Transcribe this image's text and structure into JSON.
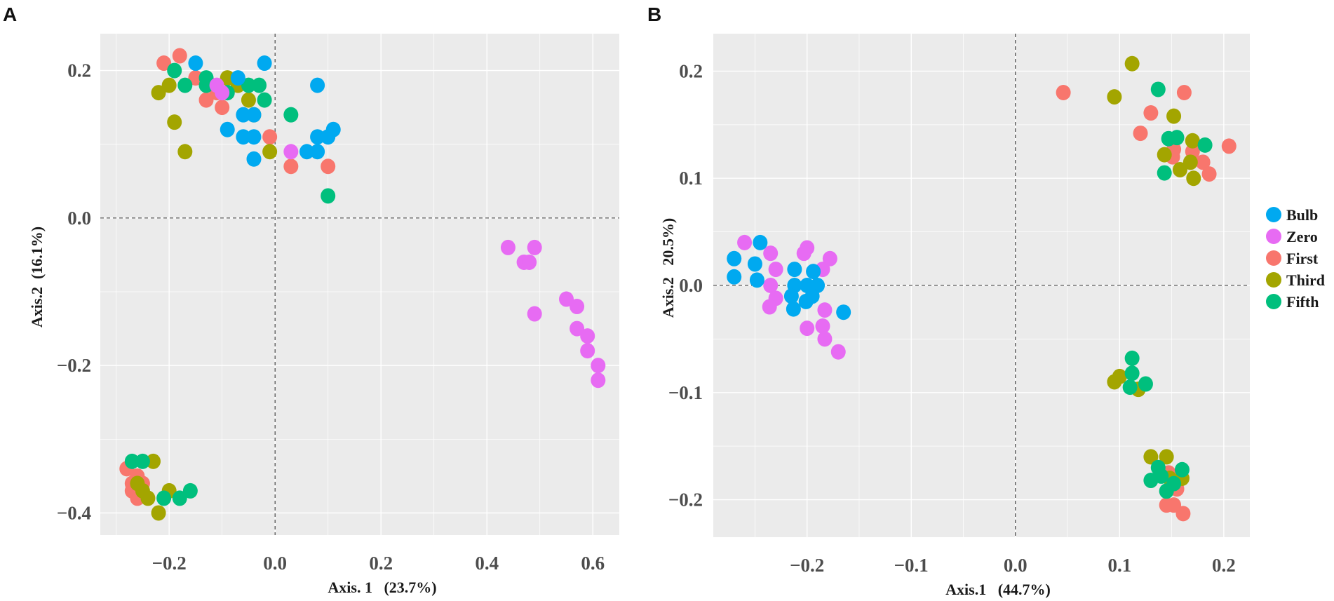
{
  "chart_data": [
    {
      "panel": "A",
      "type": "scatter",
      "xlabel": "Axis. 1   (23.7%)",
      "ylabel": "Axis.2  (16.1%)",
      "xlim": [
        -0.33,
        0.65
      ],
      "ylim": [
        -0.43,
        0.25
      ],
      "xticks": [
        -0.2,
        0.0,
        0.2,
        0.4,
        0.6
      ],
      "xtick_labels": [
        "−0.2",
        "0.0",
        "0.2",
        "0.4",
        "0.6"
      ],
      "yticks": [
        -0.4,
        -0.2,
        0.0,
        0.2
      ],
      "ytick_labels": [
        "−0.4",
        "−0.2",
        "0.0",
        "0.2"
      ],
      "grid": true,
      "reference_lines": {
        "x": 0.0,
        "y": 0.0
      },
      "series": [
        {
          "name": "First",
          "points": [
            [
              -0.21,
              0.21
            ],
            [
              -0.18,
              0.22
            ],
            [
              -0.15,
              0.19
            ],
            [
              -0.12,
              0.18
            ],
            [
              -0.13,
              0.16
            ],
            [
              -0.11,
              0.17
            ],
            [
              -0.1,
              0.15
            ],
            [
              -0.09,
              0.17
            ],
            [
              -0.01,
              0.11
            ],
            [
              0.03,
              0.07
            ],
            [
              0.1,
              0.07
            ],
            [
              -0.28,
              -0.34
            ],
            [
              -0.27,
              -0.36
            ],
            [
              -0.26,
              -0.35
            ],
            [
              -0.27,
              -0.37
            ],
            [
              -0.26,
              -0.38
            ],
            [
              -0.25,
              -0.36
            ]
          ]
        },
        {
          "name": "Third",
          "points": [
            [
              -0.22,
              0.17
            ],
            [
              -0.2,
              0.18
            ],
            [
              -0.19,
              0.13
            ],
            [
              -0.17,
              0.09
            ],
            [
              -0.09,
              0.19
            ],
            [
              -0.07,
              0.18
            ],
            [
              -0.05,
              0.16
            ],
            [
              -0.04,
              0.14
            ],
            [
              -0.01,
              0.09
            ],
            [
              -0.23,
              -0.33
            ],
            [
              -0.26,
              -0.36
            ],
            [
              -0.25,
              -0.37
            ],
            [
              -0.24,
              -0.38
            ],
            [
              -0.22,
              -0.4
            ],
            [
              -0.2,
              -0.37
            ]
          ]
        },
        {
          "name": "Fifth",
          "points": [
            [
              -0.19,
              0.2
            ],
            [
              -0.17,
              0.18
            ],
            [
              -0.13,
              0.18
            ],
            [
              -0.13,
              0.19
            ],
            [
              -0.09,
              0.17
            ],
            [
              -0.05,
              0.18
            ],
            [
              -0.03,
              0.18
            ],
            [
              -0.02,
              0.16
            ],
            [
              0.03,
              0.14
            ],
            [
              0.1,
              0.03
            ],
            [
              -0.27,
              -0.33
            ],
            [
              -0.25,
              -0.33
            ],
            [
              -0.21,
              -0.38
            ],
            [
              -0.18,
              -0.38
            ],
            [
              -0.16,
              -0.37
            ]
          ]
        },
        {
          "name": "Bulb",
          "points": [
            [
              -0.15,
              0.21
            ],
            [
              -0.02,
              0.21
            ],
            [
              -0.07,
              0.19
            ],
            [
              -0.06,
              0.14
            ],
            [
              -0.04,
              0.14
            ],
            [
              -0.09,
              0.12
            ],
            [
              -0.06,
              0.11
            ],
            [
              -0.04,
              0.11
            ],
            [
              -0.04,
              0.08
            ],
            [
              0.08,
              0.18
            ],
            [
              0.08,
              0.11
            ],
            [
              0.1,
              0.11
            ],
            [
              0.11,
              0.12
            ],
            [
              0.06,
              0.09
            ],
            [
              0.08,
              0.09
            ]
          ]
        },
        {
          "name": "Zero",
          "points": [
            [
              -0.11,
              0.18
            ],
            [
              -0.1,
              0.17
            ],
            [
              0.03,
              0.09
            ],
            [
              0.44,
              -0.04
            ],
            [
              0.49,
              -0.04
            ],
            [
              0.47,
              -0.06
            ],
            [
              0.48,
              -0.06
            ],
            [
              0.49,
              -0.13
            ],
            [
              0.55,
              -0.11
            ],
            [
              0.57,
              -0.12
            ],
            [
              0.57,
              -0.15
            ],
            [
              0.59,
              -0.16
            ],
            [
              0.59,
              -0.18
            ],
            [
              0.61,
              -0.2
            ],
            [
              0.61,
              -0.22
            ]
          ]
        }
      ]
    },
    {
      "panel": "B",
      "type": "scatter",
      "xlabel": "Axis.1   (44.7%)",
      "ylabel": "Axis.2   20.5%)",
      "xlim": [
        -0.29,
        0.225
      ],
      "ylim": [
        -0.235,
        0.235
      ],
      "xticks": [
        -0.2,
        -0.1,
        0.0,
        0.1,
        0.2
      ],
      "xtick_labels": [
        "−0.2",
        "−0.1",
        "0.0",
        "0.1",
        "0.2"
      ],
      "yticks": [
        -0.2,
        -0.1,
        0.0,
        0.1,
        0.2
      ],
      "ytick_labels": [
        "−0.2",
        "−0.1",
        "0.0",
        "0.1",
        "0.2"
      ],
      "grid": true,
      "reference_lines": {
        "x": 0.0,
        "y": 0.0
      },
      "series": [
        {
          "name": "Zero",
          "points": [
            [
              -0.26,
              0.04
            ],
            [
              -0.235,
              0.03
            ],
            [
              -0.23,
              0.015
            ],
            [
              -0.2,
              0.035
            ],
            [
              -0.203,
              0.03
            ],
            [
              -0.178,
              0.025
            ],
            [
              -0.185,
              0.015
            ],
            [
              -0.235,
              0.0
            ],
            [
              -0.23,
              -0.012
            ],
            [
              -0.236,
              -0.02
            ],
            [
              -0.2,
              -0.04
            ],
            [
              -0.183,
              -0.023
            ],
            [
              -0.185,
              -0.038
            ],
            [
              -0.183,
              -0.05
            ],
            [
              -0.17,
              -0.062
            ]
          ]
        },
        {
          "name": "Bulb",
          "points": [
            [
              -0.27,
              0.025
            ],
            [
              -0.245,
              0.04
            ],
            [
              -0.25,
              0.02
            ],
            [
              -0.27,
              0.008
            ],
            [
              -0.248,
              0.005
            ],
            [
              -0.212,
              0.015
            ],
            [
              -0.194,
              0.013
            ],
            [
              -0.212,
              0.0
            ],
            [
              -0.2,
              0.0
            ],
            [
              -0.19,
              0.0
            ],
            [
              -0.215,
              -0.01
            ],
            [
              -0.195,
              -0.01
            ],
            [
              -0.201,
              -0.015
            ],
            [
              -0.213,
              -0.022
            ],
            [
              -0.165,
              -0.025
            ]
          ]
        },
        {
          "name": "First",
          "points": [
            [
              0.046,
              0.18
            ],
            [
              0.162,
              0.18
            ],
            [
              0.13,
              0.161
            ],
            [
              0.12,
              0.142
            ],
            [
              0.152,
              0.127
            ],
            [
              0.17,
              0.125
            ],
            [
              0.205,
              0.13
            ],
            [
              0.151,
              0.12
            ],
            [
              0.18,
              0.115
            ],
            [
              0.186,
              0.104
            ],
            [
              0.147,
              -0.175
            ],
            [
              0.155,
              -0.19
            ],
            [
              0.145,
              -0.205
            ],
            [
              0.152,
              -0.205
            ],
            [
              0.161,
              -0.213
            ]
          ]
        },
        {
          "name": "Third",
          "points": [
            [
              0.112,
              0.207
            ],
            [
              0.095,
              0.176
            ],
            [
              0.152,
              0.158
            ],
            [
              0.143,
              0.122
            ],
            [
              0.17,
              0.135
            ],
            [
              0.168,
              0.115
            ],
            [
              0.158,
              0.108
            ],
            [
              0.171,
              0.1
            ],
            [
              0.095,
              -0.09
            ],
            [
              0.1,
              -0.085
            ],
            [
              0.118,
              -0.097
            ],
            [
              0.13,
              -0.16
            ],
            [
              0.145,
              -0.16
            ],
            [
              0.148,
              -0.18
            ],
            [
              0.16,
              -0.18
            ]
          ]
        },
        {
          "name": "Fifth",
          "points": [
            [
              0.137,
              0.183
            ],
            [
              0.147,
              0.137
            ],
            [
              0.155,
              0.138
            ],
            [
              0.182,
              0.131
            ],
            [
              0.143,
              0.105
            ],
            [
              0.11,
              -0.095
            ],
            [
              0.112,
              -0.082
            ],
            [
              0.112,
              -0.068
            ],
            [
              0.125,
              -0.092
            ],
            [
              0.137,
              -0.17
            ],
            [
              0.13,
              -0.182
            ],
            [
              0.16,
              -0.172
            ],
            [
              0.145,
              -0.192
            ],
            [
              0.152,
              -0.185
            ],
            [
              0.14,
              -0.178
            ]
          ]
        }
      ]
    }
  ],
  "legend": {
    "placement": "right of panel B",
    "entries": [
      {
        "label": "Bulb",
        "color": "#00a9f0"
      },
      {
        "label": "Zero",
        "color": "#e76bf3"
      },
      {
        "label": "First",
        "color": "#f8766d"
      },
      {
        "label": "Third",
        "color": "#a3a500"
      },
      {
        "label": "Fifth",
        "color": "#00bf7d"
      }
    ]
  },
  "colors": {
    "Bulb": "#00a9f0",
    "Zero": "#e76bf3",
    "First": "#f8766d",
    "Third": "#a3a500",
    "Fifth": "#00bf7d",
    "panel_bg": "#ebebeb",
    "grid": "#ffffff",
    "refline": "#333333"
  }
}
